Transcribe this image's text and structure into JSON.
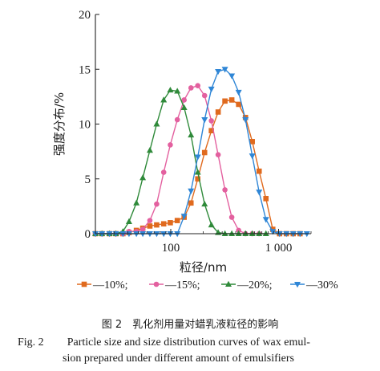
{
  "chart_data": {
    "type": "line",
    "xlabel": "粒径/nm",
    "ylabel": "强度分布/%",
    "x_scale": "log",
    "xlim": [
      20,
      2000
    ],
    "ylim": [
      0,
      20
    ],
    "x_ticks": [
      {
        "value": 100,
        "label": "100"
      },
      {
        "value": 1000,
        "label": "1 000"
      }
    ],
    "y_ticks": [
      {
        "value": 0,
        "label": "0"
      },
      {
        "value": 5,
        "label": "5"
      },
      {
        "value": 10,
        "label": "10"
      },
      {
        "value": 15,
        "label": "15"
      },
      {
        "value": 20,
        "label": "20"
      }
    ],
    "legend_position": "bottom",
    "series": [
      {
        "name": "—10%;",
        "color": "#e06a1e",
        "marker": "square",
        "x": [
          20,
          23,
          27,
          31,
          36,
          41,
          48,
          55,
          64,
          74,
          86,
          99,
          115,
          133,
          154,
          178,
          206,
          238,
          275,
          318,
          368,
          426,
          493,
          570,
          660,
          763,
          883,
          1021,
          1181,
          1366,
          1580
        ],
        "y": [
          0,
          0,
          0,
          0,
          0,
          0.1,
          0.3,
          0.5,
          0.7,
          0.8,
          0.9,
          1.0,
          1.2,
          1.5,
          2.8,
          5.0,
          7.4,
          9.4,
          11.1,
          12.1,
          12.2,
          11.8,
          10.6,
          8.4,
          5.7,
          3.2,
          0.4,
          0,
          0,
          0,
          0
        ]
      },
      {
        "name": "—15%;",
        "color": "#e3609f",
        "marker": "circle",
        "x": [
          20,
          23,
          27,
          31,
          36,
          41,
          48,
          55,
          64,
          74,
          86,
          99,
          115,
          133,
          154,
          178,
          206,
          238,
          275,
          318,
          368,
          426,
          493,
          570,
          660
        ],
        "y": [
          0,
          0,
          0,
          0,
          0,
          0.2,
          0.2,
          0.4,
          1.2,
          2.7,
          5.6,
          8.1,
          10.4,
          12.2,
          13.3,
          13.5,
          12.6,
          10.3,
          7.2,
          4.0,
          1.5,
          0.3,
          0,
          0,
          0
        ]
      },
      {
        "name": "—20%;",
        "color": "#2f8a3a",
        "marker": "triangle-up",
        "x": [
          20,
          23,
          27,
          31,
          36,
          41,
          48,
          55,
          64,
          74,
          86,
          99,
          115,
          133,
          154,
          178,
          206,
          238,
          275,
          318,
          368,
          426,
          493,
          570,
          660,
          763
        ],
        "y": [
          0,
          0,
          0,
          0,
          0.2,
          1.1,
          2.8,
          5.1,
          7.6,
          10.0,
          12.2,
          13.1,
          13.0,
          11.5,
          9.0,
          5.6,
          2.7,
          0.8,
          0.1,
          0,
          0,
          0,
          0,
          0,
          0,
          0
        ]
      },
      {
        "name": "—30%",
        "color": "#2f86d6",
        "marker": "triangle-down",
        "x": [
          20,
          23,
          27,
          31,
          36,
          41,
          48,
          55,
          64,
          74,
          86,
          99,
          115,
          133,
          154,
          178,
          206,
          238,
          275,
          318,
          368,
          426,
          493,
          570,
          660,
          763,
          883,
          1021,
          1181,
          1366,
          1580,
          1828
        ],
        "y": [
          0,
          0,
          0,
          0,
          0,
          0,
          0,
          0,
          0,
          0,
          0,
          0,
          0,
          1.6,
          3.9,
          7.0,
          10.4,
          13.2,
          14.8,
          15.0,
          14.4,
          12.9,
          10.4,
          7.1,
          3.8,
          1.3,
          0.2,
          0,
          0,
          0,
          0,
          0
        ]
      }
    ]
  },
  "caption": {
    "cn": "图 2　乳化剂用量对蜡乳液粒径的影响",
    "en_label": "Fig. 2",
    "en_line1": "Particle size and size distribution curves of wax emul-",
    "en_line2": "sion prepared under different amount of emulsifiers"
  }
}
